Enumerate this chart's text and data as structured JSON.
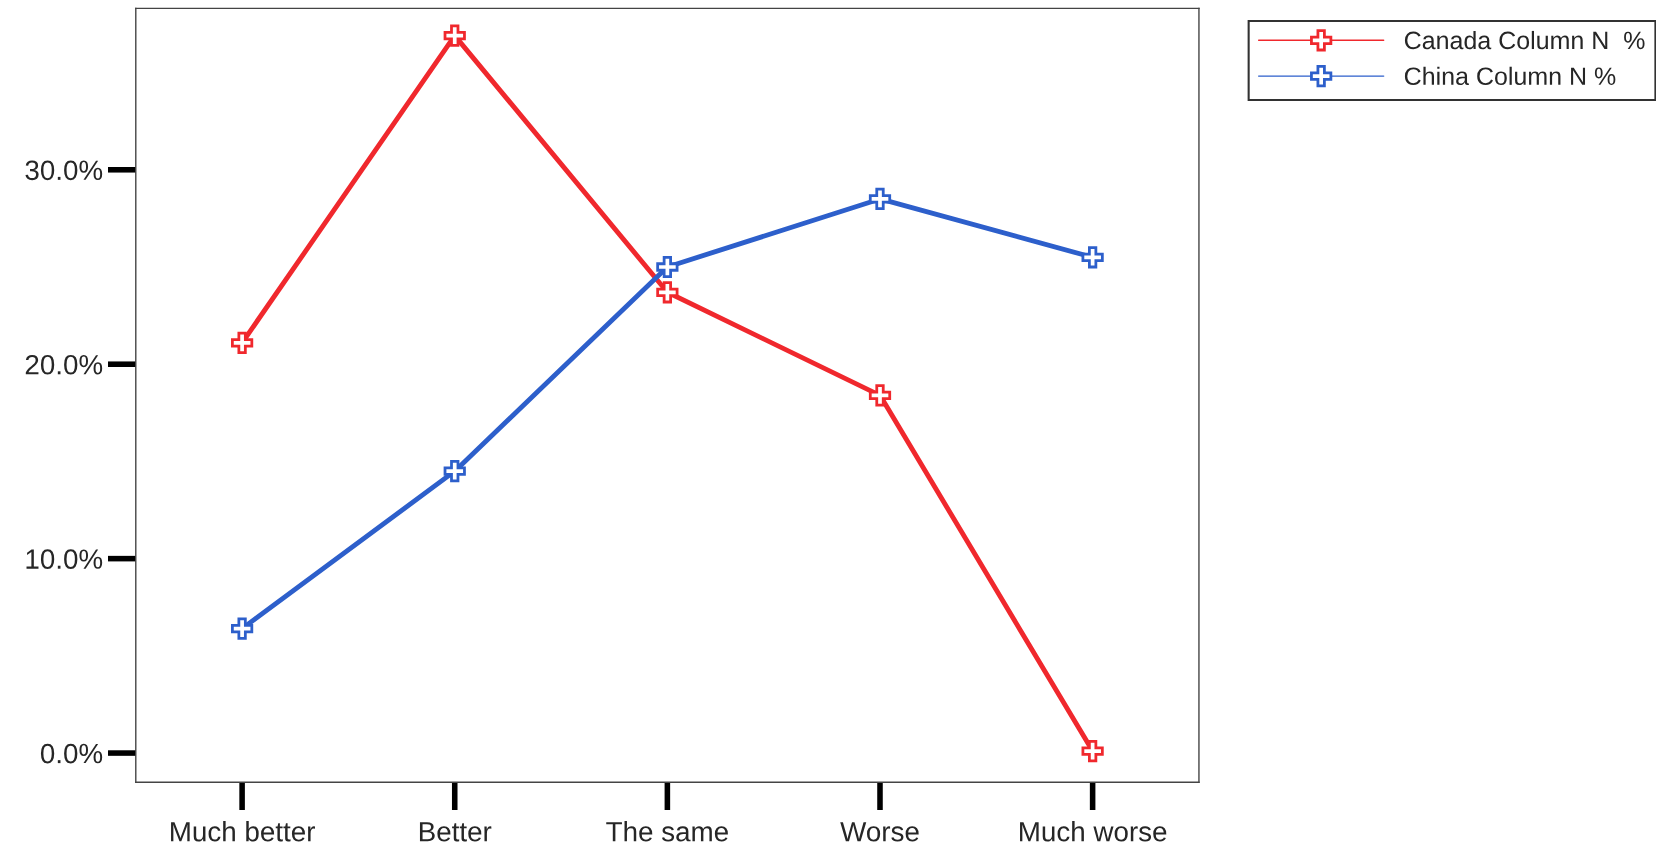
{
  "chart_data": {
    "type": "line",
    "categories": [
      "Much better",
      "Better",
      "The same",
      "Worse",
      "Much worse"
    ],
    "series": [
      {
        "name": "Canada Column N  %",
        "color": "#f0282d",
        "values": [
          21.1,
          36.9,
          23.7,
          18.4,
          0.1
        ]
      },
      {
        "name": "China Column N %",
        "color": "#2d5fcb",
        "values": [
          6.4,
          14.5,
          25.0,
          28.5,
          25.5
        ]
      }
    ],
    "ylim": [
      -1.5,
      38.3
    ],
    "yticks": [
      {
        "value": 0,
        "label": "0.0%"
      },
      {
        "value": 10,
        "label": "10.0%"
      },
      {
        "value": 20,
        "label": "20.0%"
      },
      {
        "value": 30,
        "label": "30.0%"
      }
    ],
    "grid": false,
    "legend": "top right",
    "marker": "cross",
    "line_style": "solid"
  }
}
